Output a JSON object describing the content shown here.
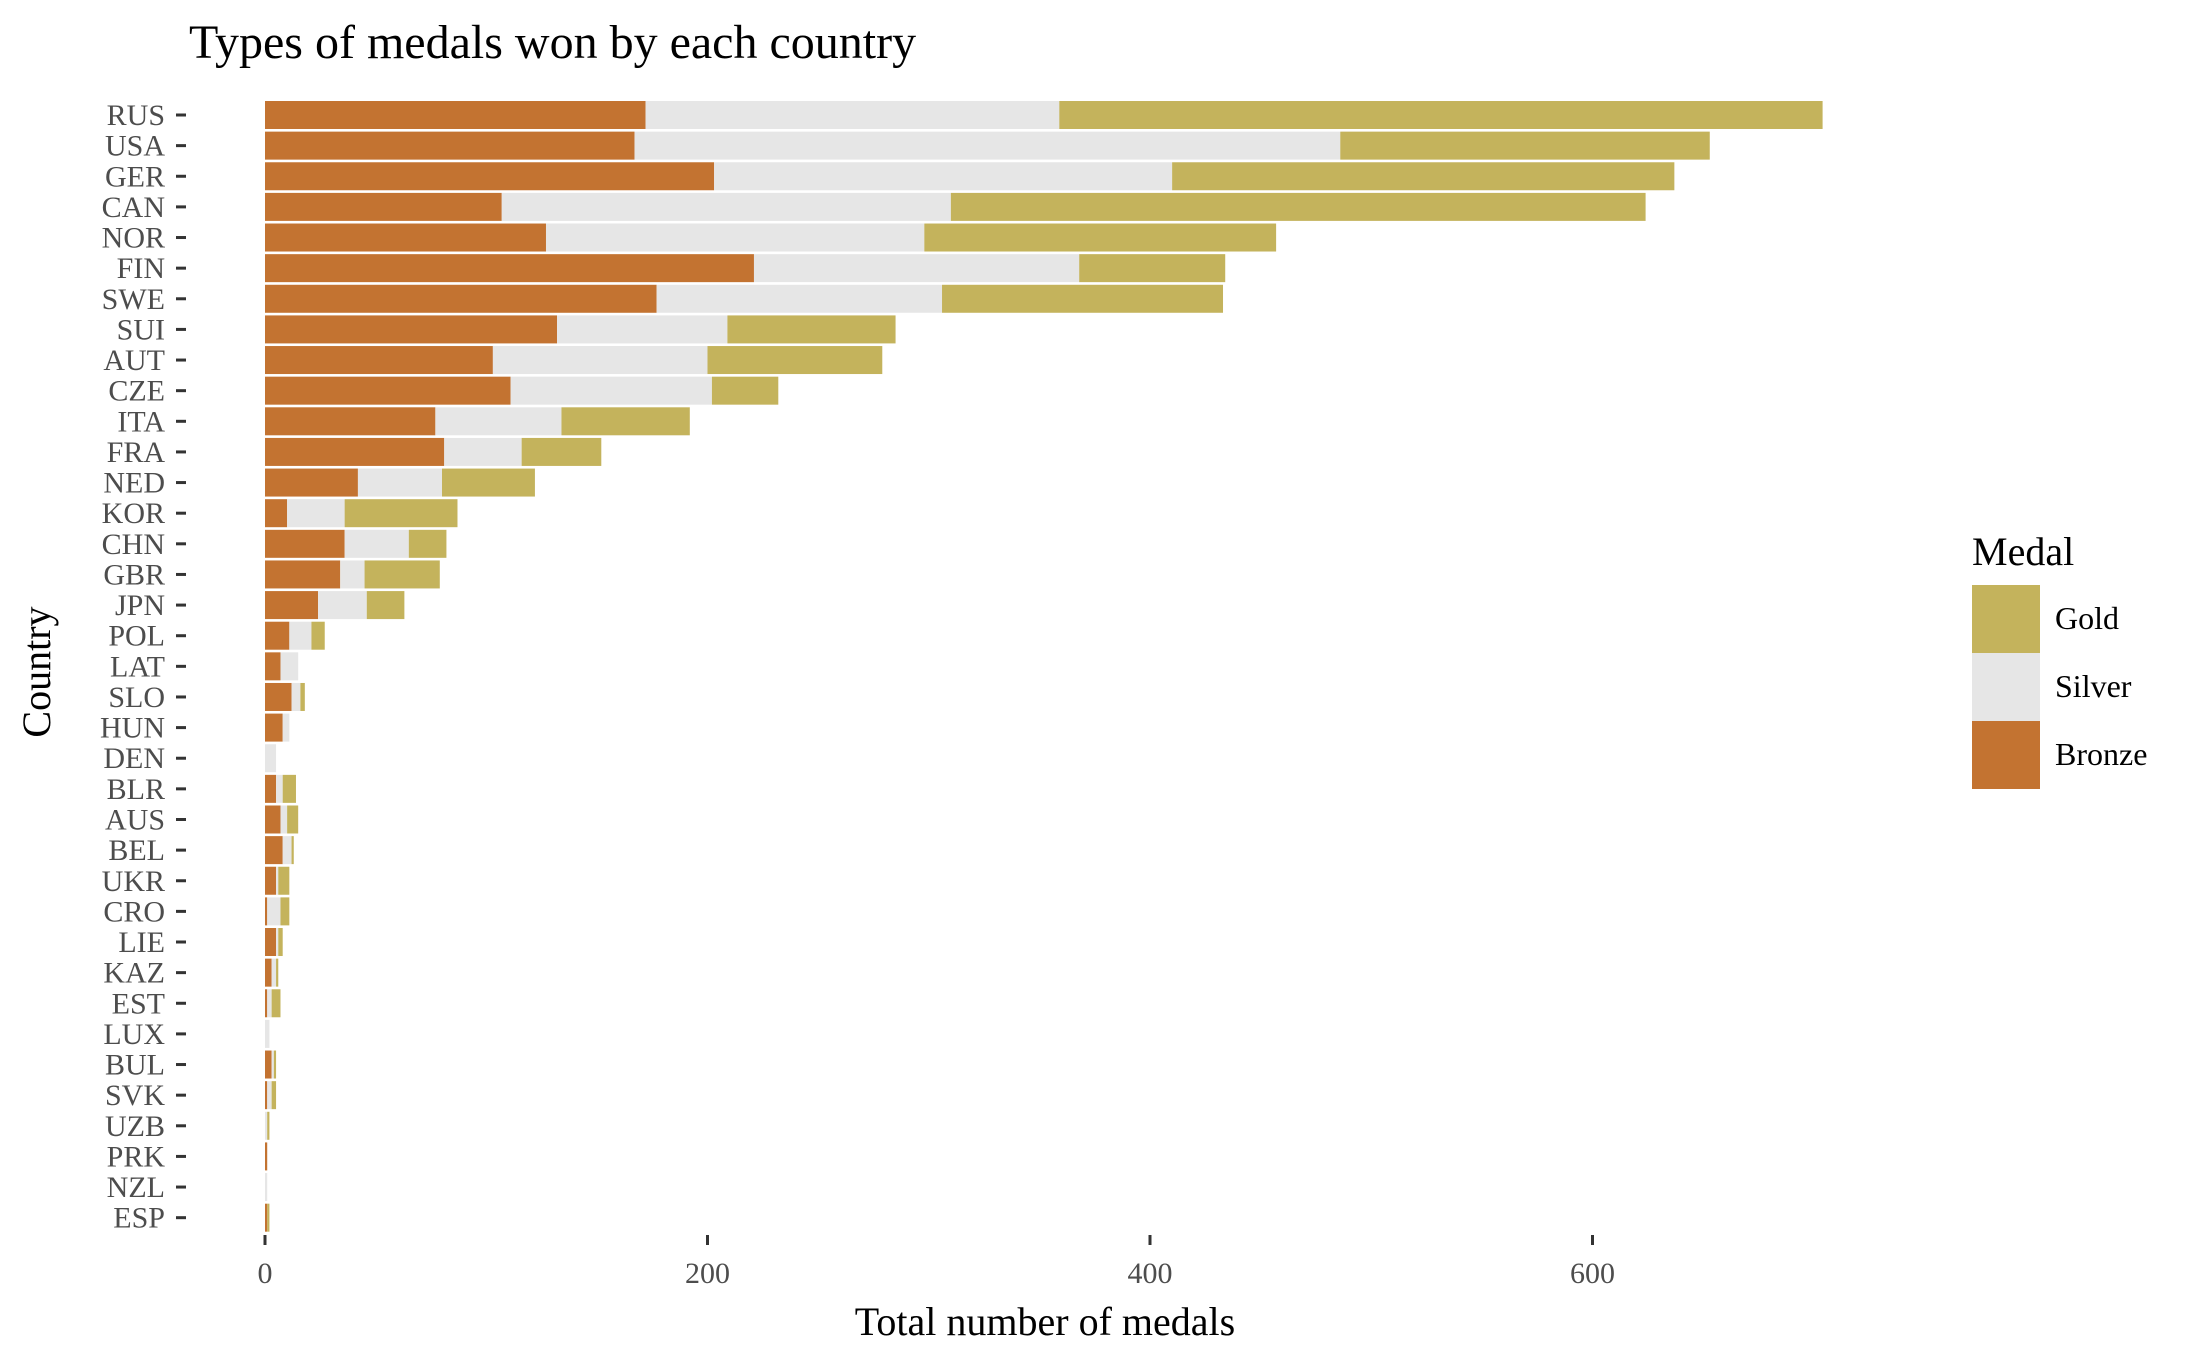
{
  "chart_data": {
    "type": "bar",
    "orientation": "horizontal",
    "stacked": true,
    "title": "Types of medals won by each country",
    "xlabel": "Total number of medals",
    "ylabel": "Country",
    "xlim": [
      0,
      740
    ],
    "x_ticks": [
      0,
      200,
      400,
      600
    ],
    "grid": false,
    "legend_position": "right",
    "legend_title": "Medal",
    "categories": [
      "RUS",
      "USA",
      "GER",
      "CAN",
      "NOR",
      "FIN",
      "SWE",
      "SUI",
      "AUT",
      "CZE",
      "ITA",
      "FRA",
      "NED",
      "KOR",
      "CHN",
      "GBR",
      "JPN",
      "POL",
      "LAT",
      "SLO",
      "HUN",
      "DEN",
      "BLR",
      "AUS",
      "BEL",
      "UKR",
      "CRO",
      "LIE",
      "KAZ",
      "EST",
      "LUX",
      "BUL",
      "SVK",
      "UZB",
      "PRK",
      "NZL",
      "ESP"
    ],
    "series": [
      {
        "name": "Bronze",
        "color": "#C37331",
        "values": [
          172,
          167,
          203,
          107,
          127,
          221,
          177,
          132,
          103,
          111,
          77,
          81,
          42,
          10,
          36,
          34,
          24,
          11,
          7,
          12,
          8,
          0,
          5,
          7,
          8,
          5,
          1,
          5,
          3,
          1,
          0,
          3,
          1,
          0,
          1,
          0,
          1
        ]
      },
      {
        "name": "Silver",
        "color": "#E6E6E6",
        "values": [
          187,
          319,
          207,
          203,
          171,
          147,
          129,
          77,
          97,
          91,
          57,
          35,
          38,
          26,
          29,
          11,
          22,
          10,
          8,
          4,
          3,
          5,
          3,
          3,
          4,
          1,
          6,
          1,
          2,
          2,
          2,
          1,
          2,
          1,
          0,
          1,
          0
        ]
      },
      {
        "name": "Gold",
        "color": "#C4B35C",
        "values": [
          345,
          167,
          227,
          314,
          159,
          66,
          127,
          76,
          79,
          30,
          58,
          36,
          42,
          51,
          17,
          34,
          17,
          6,
          0,
          2,
          0,
          0,
          6,
          5,
          1,
          5,
          4,
          2,
          1,
          4,
          0,
          1,
          2,
          1,
          0,
          0,
          1
        ]
      }
    ],
    "legend_order": [
      "Gold",
      "Silver",
      "Bronze"
    ]
  }
}
